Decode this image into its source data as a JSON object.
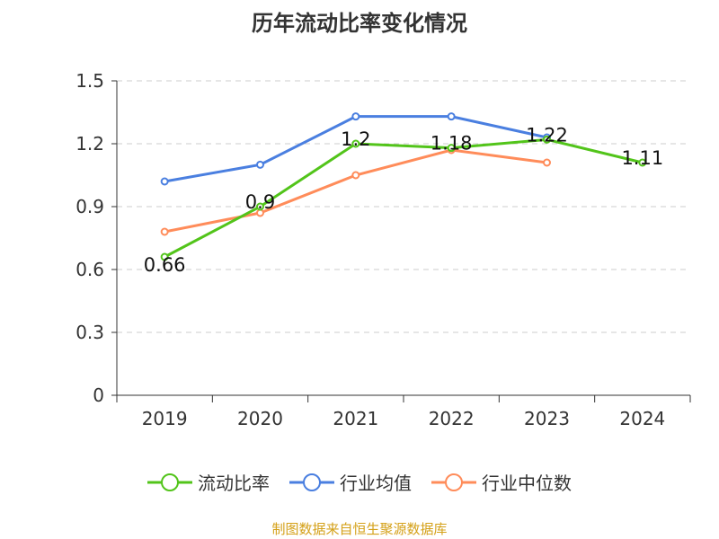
{
  "chart_data": {
    "type": "line",
    "title": "历年流动比率变化情况",
    "categories": [
      "2019",
      "2020",
      "2021",
      "2022",
      "2023",
      "2024"
    ],
    "ylim": [
      0,
      1.5
    ],
    "yticks": [
      "0",
      "0.3",
      "0.6",
      "0.9",
      "1.2",
      "1.5"
    ],
    "grid": true,
    "legend_position": "bottom",
    "series": [
      {
        "name": "流动比率",
        "color": "#52c41a",
        "values": [
          0.66,
          0.9,
          1.2,
          1.18,
          1.22,
          1.11
        ],
        "labels": [
          "0.66",
          "0.9",
          "1.2",
          "1.18",
          "1.22",
          "1.11"
        ]
      },
      {
        "name": "行业均值",
        "color": "#4a7fe0",
        "values": [
          1.02,
          1.1,
          1.33,
          1.33,
          1.23,
          null
        ]
      },
      {
        "name": "行业中位数",
        "color": "#ff8c5a",
        "values": [
          0.78,
          0.87,
          1.05,
          1.17,
          1.11,
          null
        ]
      }
    ]
  },
  "source": "制图数据来自恒生聚源数据库"
}
